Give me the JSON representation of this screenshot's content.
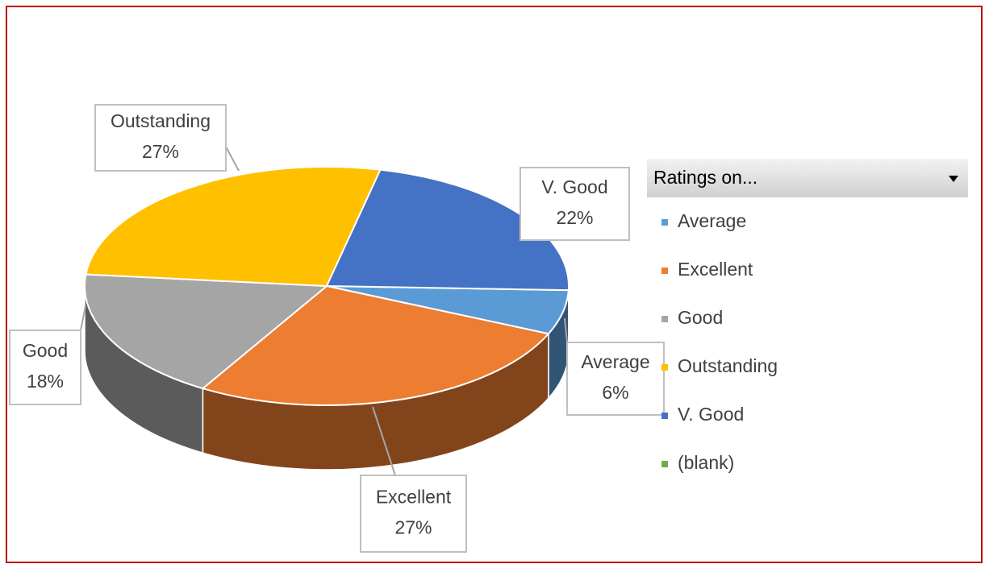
{
  "chart_data": {
    "type": "pie",
    "legend_title": "Ratings on...",
    "categories": [
      "Average",
      "Excellent",
      "Good",
      "Outstanding",
      "V. Good",
      "(blank)"
    ],
    "values": [
      6,
      27,
      18,
      27,
      22,
      null
    ],
    "value_labels": [
      "6%",
      "27%",
      "18%",
      "27%",
      "22%",
      null
    ],
    "colors": [
      "#5b9bd5",
      "#ed7d31",
      "#a5a5a5",
      "#ffc000",
      "#4472c4",
      "#70ad47"
    ],
    "legend": "right"
  }
}
